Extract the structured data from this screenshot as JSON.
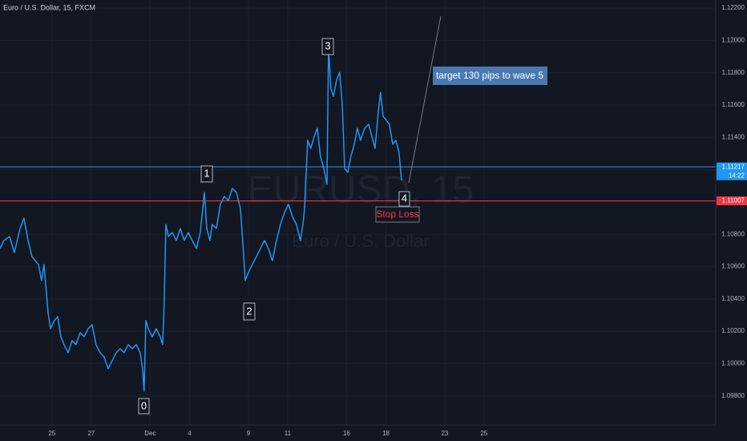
{
  "chart_data": {
    "type": "line",
    "title": "Euro / U.S. Dollar, 15, FXCM",
    "watermark": "EURUSD, 15",
    "watermark_subtitle": "Euro / U.S. Dollar",
    "color": "#2196f3",
    "grid": true,
    "x": [
      -2.65,
      -2.45,
      -2.16,
      -1.92,
      -1.63,
      -1.43,
      -1.22,
      -1.02,
      -0.69,
      -0.53,
      -0.41,
      -0.2,
      -0.08,
      0.12,
      0.29,
      0.45,
      0.61,
      0.82,
      1.02,
      1.22,
      1.43,
      1.63,
      1.84,
      2.04,
      2.24,
      2.45,
      2.65,
      2.86,
      3.06,
      3.27,
      3.47,
      3.67,
      3.88,
      4.08,
      4.29,
      4.49,
      4.61,
      4.69,
      4.78,
      4.9,
      5.1,
      5.31,
      5.51,
      5.63,
      5.71,
      5.8,
      5.92,
      6.12,
      6.33,
      6.53,
      6.73,
      6.94,
      7.14,
      7.35,
      7.55,
      7.76,
      7.88,
      8.04,
      8.16,
      8.37,
      8.57,
      8.78,
      8.98,
      9.18,
      9.39,
      9.59,
      9.71,
      9.84,
      10,
      10.2,
      10.41,
      10.61,
      10.82,
      11.02,
      11.22,
      11.43,
      11.63,
      11.84,
      12.04,
      12.24,
      12.45,
      12.65,
      12.78,
      12.86,
      13.02,
      13.18,
      13.35,
      13.51,
      13.67,
      13.84,
      14,
      14.08,
      14.2,
      14.33,
      14.49,
      14.65,
      14.78,
      14.9,
      15.06,
      15.22,
      15.39,
      15.55,
      15.71,
      15.92,
      16.12,
      16.29,
      16.45,
      16.61,
      16.73,
      16.86,
      17.02,
      17.18,
      17.35,
      17.51,
      17.67,
      17.8
    ],
    "values": [
      1.10712,
      1.10762,
      1.10786,
      1.10687,
      1.10836,
      1.109,
      1.10762,
      1.10662,
      1.10613,
      1.10514,
      1.10613,
      1.10315,
      1.10216,
      1.10266,
      1.1029,
      1.10166,
      1.10117,
      1.10067,
      1.10142,
      1.10117,
      1.10191,
      1.10166,
      1.10216,
      1.10241,
      1.10117,
      1.10067,
      1.10042,
      1.09968,
      1.10018,
      1.10067,
      1.10092,
      1.10067,
      1.10117,
      1.10092,
      1.10117,
      1.10067,
      1.09968,
      1.09829,
      1.10266,
      1.10216,
      1.10166,
      1.10216,
      1.10166,
      1.10117,
      1.10365,
      1.10861,
      1.10786,
      1.10811,
      1.10762,
      1.10836,
      1.10762,
      1.10811,
      1.10762,
      1.10712,
      1.10811,
      1.11059,
      1.10836,
      1.10762,
      1.10861,
      1.10836,
      1.10985,
      1.11034,
      1.11009,
      1.11084,
      1.11059,
      1.1096,
      1.10762,
      1.10514,
      1.10563,
      1.10613,
      1.10662,
      1.10712,
      1.10762,
      1.10712,
      1.10637,
      1.10762,
      1.10861,
      1.10935,
      1.10985,
      1.1091,
      1.10861,
      1.10762,
      1.10861,
      1.1096,
      1.11382,
      1.11332,
      1.11406,
      1.11456,
      1.11282,
      1.11208,
      1.11109,
      1.11952,
      1.11704,
      1.11654,
      1.11754,
      1.11803,
      1.11605,
      1.11208,
      1.11183,
      1.11282,
      1.11357,
      1.11456,
      1.11382,
      1.11456,
      1.11481,
      1.11406,
      1.11332,
      1.11555,
      1.11679,
      1.1153,
      1.11506,
      1.11481,
      1.11357,
      1.11382,
      1.11307,
      1.11134
    ],
    "xlim": [
      -2.65,
      33.8
    ],
    "ylim": [
      1.0962,
      1.1225
    ],
    "xticks": [
      {
        "value": 0,
        "label": "25"
      },
      {
        "value": 2,
        "label": "27"
      },
      {
        "value": 5,
        "label": "Dec"
      },
      {
        "value": 7,
        "label": "4"
      },
      {
        "value": 10,
        "label": "9"
      },
      {
        "value": 12,
        "label": "11"
      },
      {
        "value": 15,
        "label": "16"
      },
      {
        "value": 17,
        "label": "18"
      },
      {
        "value": 20,
        "label": "23"
      },
      {
        "value": 22,
        "label": "25"
      }
    ],
    "yticks": [
      {
        "value": 1.098,
        "label": "1.09800"
      },
      {
        "value": 1.1,
        "label": "1.10000"
      },
      {
        "value": 1.102,
        "label": "1.10200"
      },
      {
        "value": 1.104,
        "label": "1.10400"
      },
      {
        "value": 1.106,
        "label": "1.10600"
      },
      {
        "value": 1.108,
        "label": "1.10800"
      },
      {
        "value": 1.11,
        "label": "1.11000"
      },
      {
        "value": 1.112,
        "label": "1.11200"
      },
      {
        "value": 1.114,
        "label": "1.11400"
      },
      {
        "value": 1.116,
        "label": "1.11600"
      },
      {
        "value": 1.118,
        "label": "1.11800"
      },
      {
        "value": 1.12,
        "label": "1.12000"
      },
      {
        "value": 1.122,
        "label": "1.12200"
      }
    ],
    "price_lines": [
      {
        "value": 1.11217,
        "color": "#2196f3",
        "countdown": "14:22"
      },
      {
        "value": 1.11007,
        "color": "#f23645"
      }
    ],
    "annotations": [
      "0",
      "1",
      "2",
      "3",
      "4",
      "Stop Loss",
      "target 130 pips to wave 5"
    ]
  }
}
